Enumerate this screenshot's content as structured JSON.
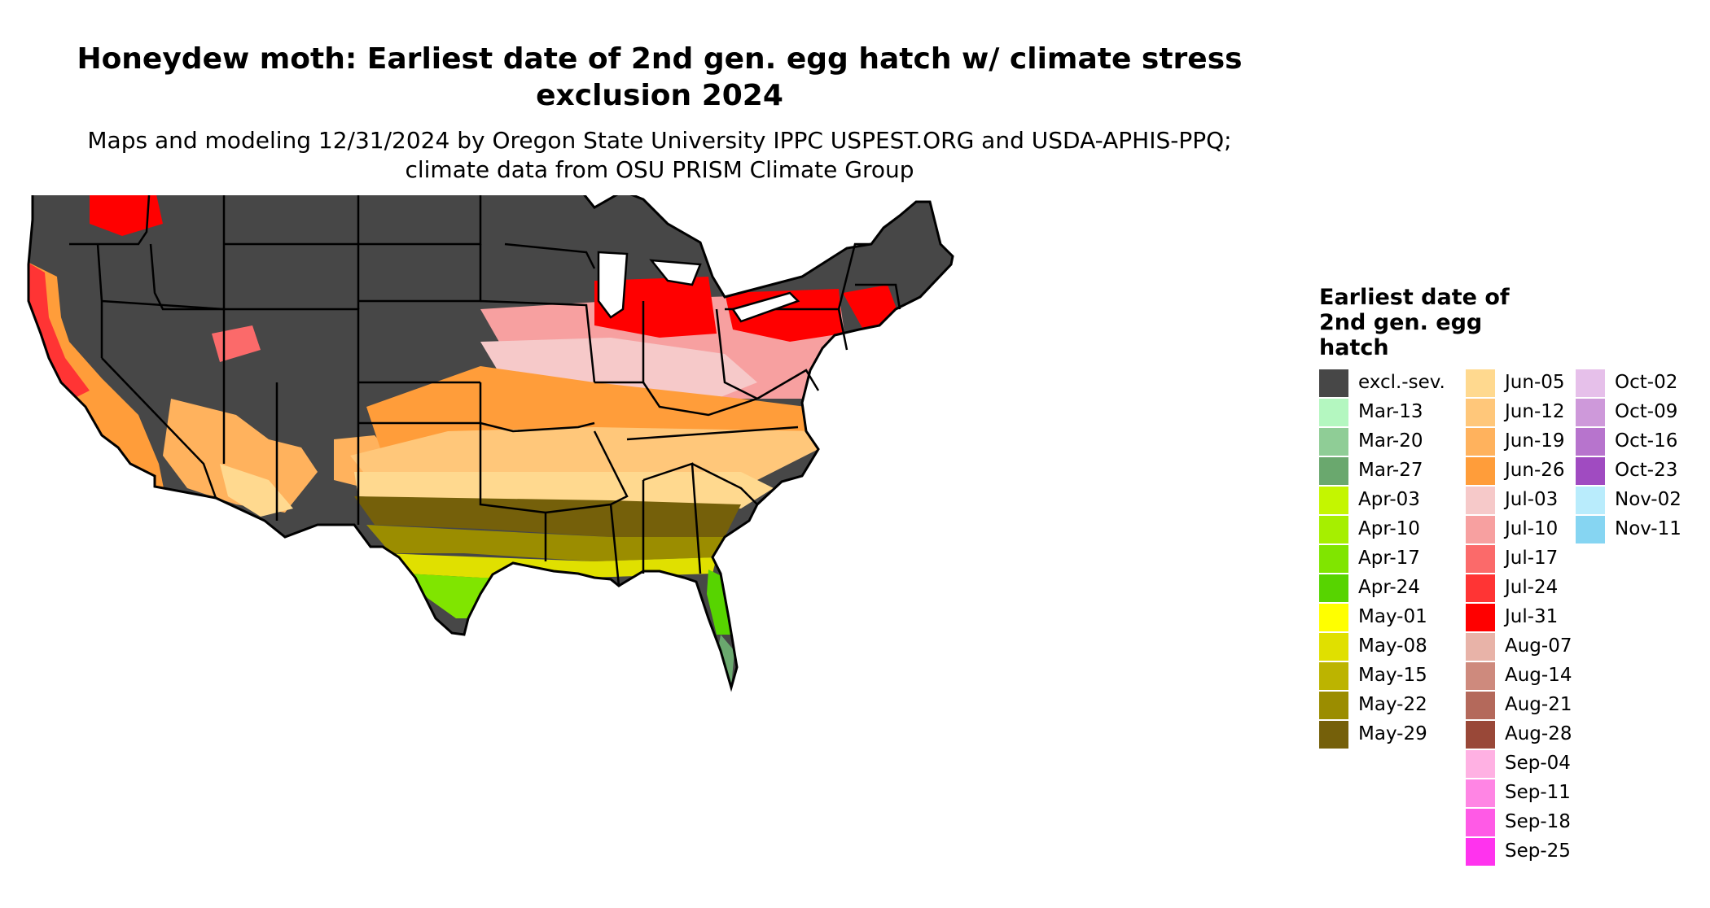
{
  "title": "Honeydew moth: Earliest date of 2nd gen. egg hatch w/ climate stress exclusion 2024",
  "subtitle": "Maps and modeling 12/31/2024 by Oregon State University IPPC USPEST.ORG and USDA-APHIS-PPQ; climate data from OSU PRISM Climate Group",
  "legend": {
    "title": "Earliest date of 2nd gen. egg hatch",
    "items": [
      {
        "label": "excl.-sev.",
        "color": "#474747"
      },
      {
        "label": "Mar-13",
        "color": "#b4f7c0"
      },
      {
        "label": "Mar-20",
        "color": "#8fcd96"
      },
      {
        "label": "Mar-27",
        "color": "#6aa86e"
      },
      {
        "label": "Apr-03",
        "color": "#c4f600"
      },
      {
        "label": "Apr-10",
        "color": "#a6ef00"
      },
      {
        "label": "Apr-17",
        "color": "#80e500"
      },
      {
        "label": "Apr-24",
        "color": "#57d400"
      },
      {
        "label": "May-01",
        "color": "#ffff00"
      },
      {
        "label": "May-08",
        "color": "#e0e000"
      },
      {
        "label": "May-15",
        "color": "#bcb400"
      },
      {
        "label": "May-22",
        "color": "#9b8d00"
      },
      {
        "label": "May-29",
        "color": "#75600a"
      },
      {
        "label": "Jun-05",
        "color": "#ffd98f"
      },
      {
        "label": "Jun-12",
        "color": "#ffc77a"
      },
      {
        "label": "Jun-19",
        "color": "#ffb25d"
      },
      {
        "label": "Jun-26",
        "color": "#ff9d3a"
      },
      {
        "label": "Jul-03",
        "color": "#f6c9c9"
      },
      {
        "label": "Jul-10",
        "color": "#f7a0a0"
      },
      {
        "label": "Jul-17",
        "color": "#fb6a6a"
      },
      {
        "label": "Jul-24",
        "color": "#ff3434"
      },
      {
        "label": "Jul-31",
        "color": "#ff0000"
      },
      {
        "label": "Aug-07",
        "color": "#e8b3a8"
      },
      {
        "label": "Aug-14",
        "color": "#ce8a7d"
      },
      {
        "label": "Aug-21",
        "color": "#b4695b"
      },
      {
        "label": "Aug-28",
        "color": "#994838"
      },
      {
        "label": "Sep-04",
        "color": "#ffb1e3"
      },
      {
        "label": "Sep-11",
        "color": "#ff85e4"
      },
      {
        "label": "Sep-18",
        "color": "#ff5ae6"
      },
      {
        "label": "Sep-25",
        "color": "#ff33ee"
      },
      {
        "label": "Oct-02",
        "color": "#e6c0ea"
      },
      {
        "label": "Oct-09",
        "color": "#ce99da"
      },
      {
        "label": "Oct-16",
        "color": "#b774cd"
      },
      {
        "label": "Oct-23",
        "color": "#a04bc1"
      },
      {
        "label": "Nov-02",
        "color": "#b9ecfc"
      },
      {
        "label": "Nov-11",
        "color": "#86d5f2"
      }
    ]
  }
}
